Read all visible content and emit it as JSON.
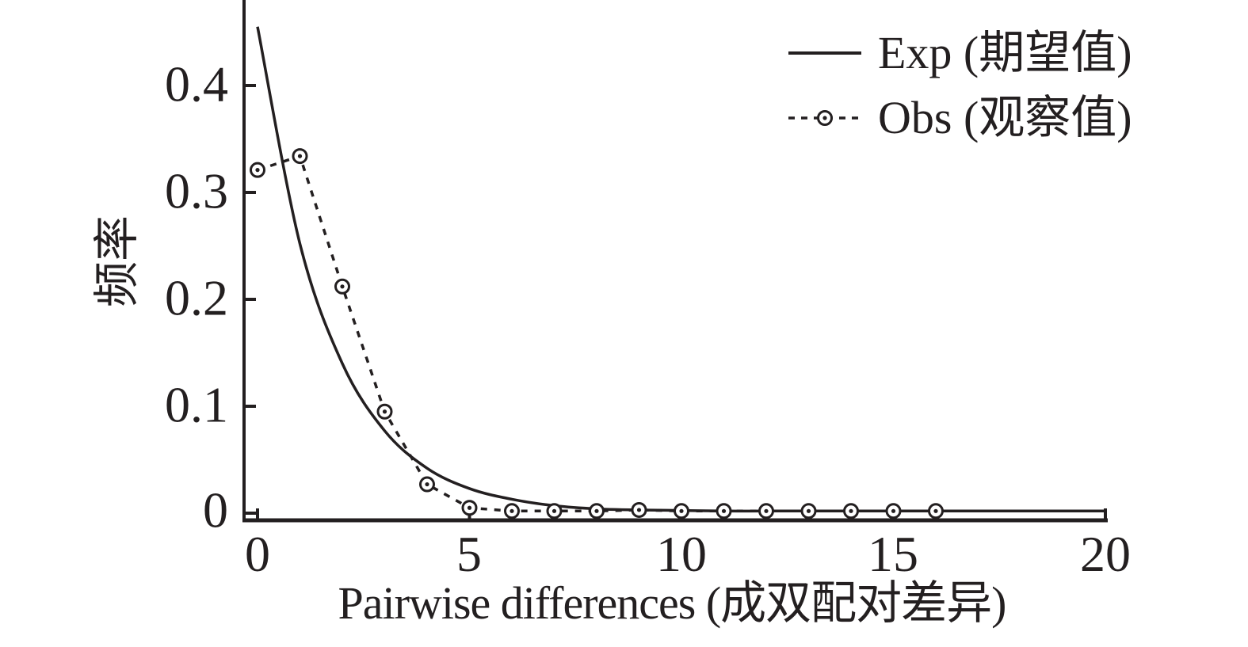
{
  "figure": {
    "background": "#ffffff",
    "ink_color": "#231f20"
  },
  "chart_data": {
    "type": "line",
    "title": "",
    "xlabel": "Pairwise differences (成双配对差异)",
    "ylabel": "频率",
    "xlim": [
      0,
      20
    ],
    "ylim": [
      0,
      0.48
    ],
    "xticks": [
      0,
      5,
      10,
      15,
      20
    ],
    "xtick_labels": [
      "0",
      "5",
      "10",
      "15",
      "20"
    ],
    "yticks": [
      0,
      0.1,
      0.2,
      0.3,
      0.4
    ],
    "ytick_labels": [
      "0",
      "0.1",
      "0.2",
      "0.3",
      "0.4"
    ],
    "grid": false,
    "legend_position": "top-right",
    "series": [
      {
        "name": "Exp (期望值)",
        "style": "solid",
        "marker": "none",
        "color": "#231f20",
        "x": [
          0,
          1,
          2,
          3,
          4,
          5,
          6,
          7,
          8,
          9,
          10,
          11,
          12,
          13,
          14,
          15,
          16,
          17,
          18,
          19,
          20
        ],
        "values": [
          0.455,
          0.252,
          0.14,
          0.077,
          0.042,
          0.023,
          0.013,
          0.007,
          0.004,
          0.003,
          0.0025,
          0.002,
          0.002,
          0.002,
          0.002,
          0.002,
          0.002,
          0.002,
          0.002,
          0.002,
          0.002
        ]
      },
      {
        "name": "Obs (观察值)",
        "style": "dashed",
        "marker": "open-circle-dot",
        "color": "#231f20",
        "x": [
          0,
          1,
          2,
          3,
          4,
          5,
          6,
          7,
          8,
          9,
          10,
          11,
          12,
          13,
          14,
          15,
          16
        ],
        "values": [
          0.321,
          0.334,
          0.212,
          0.095,
          0.027,
          0.005,
          0.002,
          0.002,
          0.002,
          0.003,
          0.002,
          0.002,
          0.002,
          0.002,
          0.002,
          0.002,
          0.002
        ]
      }
    ]
  }
}
